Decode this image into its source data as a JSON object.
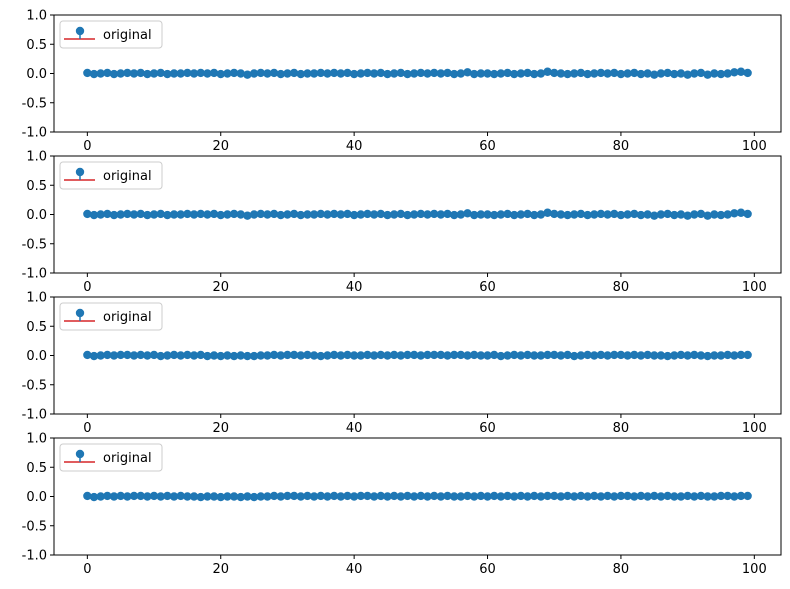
{
  "figure": {
    "background": "#ffffff",
    "marker_color": "#1f77b4",
    "baseline_color": "#d62728",
    "legend_location": "upper left"
  },
  "chart_data": [
    {
      "type": "stem",
      "title": "",
      "xlabel": "",
      "ylabel": "",
      "xlim": [
        -5,
        104
      ],
      "ylim": [
        -1.0,
        1.0
      ],
      "xticks": [
        0,
        20,
        40,
        60,
        80,
        100
      ],
      "xtick_labels": [
        "0",
        "20",
        "40",
        "60",
        "80",
        "100"
      ],
      "yticks": [
        -1.0,
        -0.5,
        0.0,
        0.5,
        1.0
      ],
      "ytick_labels": [
        "-1.0",
        "-0.5",
        "0.0",
        "0.5",
        "1.0"
      ],
      "grid": false,
      "legend": {
        "label": "original",
        "placement": "top-left"
      },
      "series": [
        {
          "name": "original",
          "x_start": 0,
          "x_step": 1,
          "values": [
            0.01,
            -0.01,
            0.0,
            0.01,
            -0.01,
            0.0,
            0.01,
            0.0,
            0.01,
            -0.01,
            0.0,
            0.01,
            -0.01,
            0.0,
            0.0,
            0.01,
            0.0,
            0.01,
            0.0,
            0.01,
            -0.01,
            0.0,
            0.01,
            0.0,
            -0.02,
            0.0,
            0.01,
            0.0,
            0.01,
            -0.01,
            0.0,
            0.01,
            -0.01,
            0.0,
            0.0,
            0.01,
            0.0,
            0.01,
            0.0,
            0.01,
            -0.01,
            0.0,
            0.01,
            0.0,
            0.01,
            -0.01,
            0.0,
            0.01,
            -0.01,
            0.0,
            0.01,
            0.0,
            0.01,
            0.0,
            0.01,
            -0.01,
            0.0,
            0.02,
            -0.01,
            0.0,
            0.0,
            -0.01,
            0.0,
            0.01,
            -0.01,
            0.0,
            0.01,
            -0.01,
            0.0,
            0.03,
            0.01,
            0.0,
            -0.01,
            0.0,
            0.01,
            -0.01,
            0.0,
            0.01,
            0.0,
            0.01,
            -0.01,
            0.0,
            0.01,
            -0.01,
            0.0,
            -0.02,
            0.0,
            0.01,
            -0.01,
            0.0,
            -0.02,
            0.0,
            0.01,
            -0.02,
            0.0,
            -0.01,
            0.0,
            0.02,
            0.03,
            0.01
          ]
        }
      ]
    },
    {
      "type": "stem",
      "title": "",
      "xlabel": "",
      "ylabel": "",
      "xlim": [
        -5,
        104
      ],
      "ylim": [
        -1.0,
        1.0
      ],
      "xticks": [
        0,
        20,
        40,
        60,
        80,
        100
      ],
      "xtick_labels": [
        "0",
        "20",
        "40",
        "60",
        "80",
        "100"
      ],
      "yticks": [
        -1.0,
        -0.5,
        0.0,
        0.5,
        1.0
      ],
      "ytick_labels": [
        "-1.0",
        "-0.5",
        "0.0",
        "0.5",
        "1.0"
      ],
      "grid": false,
      "legend": {
        "label": "original",
        "placement": "top-left"
      },
      "series": [
        {
          "name": "original",
          "x_start": 0,
          "x_step": 1,
          "values": [
            0.01,
            -0.01,
            0.0,
            0.01,
            -0.01,
            0.0,
            0.01,
            0.0,
            0.01,
            -0.01,
            0.0,
            0.01,
            -0.01,
            0.0,
            0.0,
            0.01,
            0.0,
            0.01,
            0.0,
            0.01,
            -0.01,
            0.0,
            0.01,
            0.0,
            -0.02,
            0.0,
            0.01,
            0.0,
            0.01,
            -0.01,
            0.0,
            0.01,
            -0.01,
            0.0,
            0.0,
            0.01,
            0.0,
            0.01,
            0.0,
            0.01,
            -0.01,
            0.0,
            0.01,
            0.0,
            0.01,
            -0.01,
            0.0,
            0.01,
            -0.01,
            0.0,
            0.01,
            0.0,
            0.01,
            0.0,
            0.01,
            -0.01,
            0.0,
            0.02,
            -0.01,
            0.0,
            0.0,
            -0.01,
            0.0,
            0.01,
            -0.01,
            0.0,
            0.01,
            -0.01,
            0.0,
            0.03,
            0.01,
            0.0,
            -0.01,
            0.0,
            0.01,
            -0.01,
            0.0,
            0.01,
            0.0,
            0.01,
            -0.01,
            0.0,
            0.01,
            -0.01,
            0.0,
            -0.02,
            0.0,
            0.01,
            -0.01,
            0.0,
            -0.02,
            0.0,
            0.01,
            -0.02,
            0.0,
            -0.01,
            0.0,
            0.02,
            0.03,
            0.01
          ]
        }
      ]
    },
    {
      "type": "stem",
      "title": "",
      "xlabel": "",
      "ylabel": "",
      "xlim": [
        -5,
        104
      ],
      "ylim": [
        -1.0,
        1.0
      ],
      "xticks": [
        0,
        20,
        40,
        60,
        80,
        100
      ],
      "xtick_labels": [
        "0",
        "20",
        "40",
        "60",
        "80",
        "100"
      ],
      "yticks": [
        -1.0,
        -0.5,
        0.0,
        0.5,
        1.0
      ],
      "ytick_labels": [
        "-1.0",
        "-0.5",
        "0.0",
        "0.5",
        "1.0"
      ],
      "grid": false,
      "legend": {
        "label": "original",
        "placement": "top-left"
      },
      "series": [
        {
          "name": "original",
          "x_start": 0,
          "x_step": 1,
          "values": [
            0.01,
            -0.01,
            0.0,
            0.01,
            0.0,
            0.01,
            0.01,
            0.0,
            0.01,
            0.0,
            0.01,
            -0.01,
            0.0,
            0.01,
            0.0,
            0.01,
            0.0,
            0.01,
            -0.01,
            0.0,
            -0.01,
            0.0,
            -0.01,
            0.0,
            -0.01,
            -0.01,
            0.0,
            0.0,
            0.01,
            0.0,
            0.01,
            0.01,
            0.0,
            0.01,
            0.0,
            -0.01,
            0.0,
            0.01,
            0.0,
            0.01,
            0.0,
            0.0,
            0.01,
            0.0,
            0.01,
            0.0,
            0.01,
            0.0,
            0.01,
            0.01,
            0.0,
            0.01,
            0.01,
            0.01,
            0.0,
            0.01,
            0.01,
            0.0,
            0.01,
            0.0,
            0.0,
            0.01,
            -0.01,
            0.0,
            0.01,
            0.0,
            0.01,
            0.0,
            0.0,
            0.01,
            0.01,
            0.0,
            0.01,
            -0.01,
            0.0,
            0.01,
            0.0,
            0.01,
            0.0,
            0.01,
            0.01,
            0.0,
            0.01,
            0.0,
            0.01,
            0.0,
            0.0,
            -0.01,
            0.0,
            0.01,
            0.0,
            0.01,
            0.0,
            -0.01,
            0.0,
            0.0,
            0.01,
            0.0,
            0.01,
            0.01
          ]
        }
      ]
    },
    {
      "type": "stem",
      "title": "",
      "xlabel": "",
      "ylabel": "",
      "xlim": [
        -5,
        104
      ],
      "ylim": [
        -1.0,
        1.0
      ],
      "xticks": [
        0,
        20,
        40,
        60,
        80,
        100
      ],
      "xtick_labels": [
        "0",
        "20",
        "40",
        "60",
        "80",
        "100"
      ],
      "yticks": [
        -1.0,
        -0.5,
        0.0,
        0.5,
        1.0
      ],
      "ytick_labels": [
        "-1.0",
        "-0.5",
        "0.0",
        "0.5",
        "1.0"
      ],
      "grid": false,
      "legend": {
        "label": "original",
        "placement": "top-left"
      },
      "series": [
        {
          "name": "original",
          "x_start": 0,
          "x_step": 1,
          "values": [
            0.01,
            -0.01,
            0.0,
            0.01,
            0.0,
            0.01,
            0.0,
            0.01,
            0.01,
            0.0,
            0.01,
            0.0,
            0.01,
            0.0,
            0.01,
            0.0,
            0.0,
            -0.01,
            0.0,
            0.0,
            -0.01,
            0.0,
            0.0,
            -0.01,
            0.0,
            -0.01,
            0.0,
            0.0,
            0.01,
            0.0,
            0.01,
            0.01,
            0.0,
            0.01,
            0.0,
            0.01,
            0.0,
            0.01,
            0.0,
            0.01,
            0.0,
            0.01,
            0.01,
            0.0,
            0.01,
            0.0,
            0.01,
            0.0,
            0.01,
            0.0,
            0.01,
            0.0,
            0.01,
            0.0,
            0.01,
            0.0,
            0.0,
            0.01,
            0.0,
            0.01,
            0.0,
            0.01,
            0.0,
            0.01,
            0.0,
            0.01,
            0.0,
            0.01,
            0.0,
            0.01,
            0.01,
            0.0,
            0.01,
            0.0,
            0.01,
            0.0,
            0.01,
            0.0,
            0.01,
            0.0,
            0.01,
            0.01,
            0.0,
            0.01,
            0.0,
            0.01,
            0.0,
            0.01,
            0.0,
            0.0,
            0.01,
            0.0,
            0.01,
            0.0,
            0.0,
            0.01,
            0.01,
            0.0,
            0.01,
            0.01
          ]
        }
      ]
    }
  ]
}
